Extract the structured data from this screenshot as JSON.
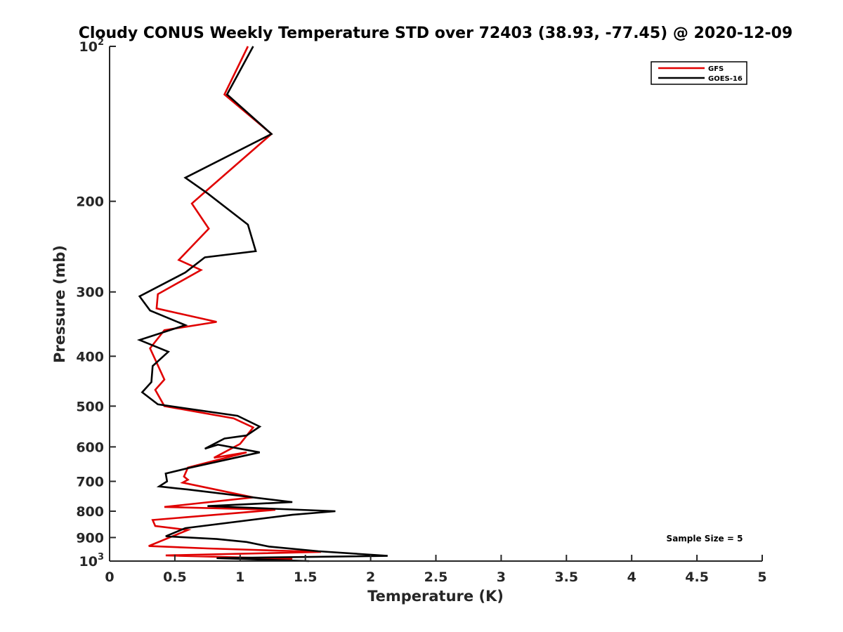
{
  "chart_data": {
    "type": "line",
    "title": "Cloudy CONUS Weekly Temperature STD over 72403 (38.93, -77.45) @ 2020-12-09",
    "xlabel": "Temperature (K)",
    "ylabel": "Pressure (mb)",
    "xlim": [
      0,
      5
    ],
    "ylim": [
      100,
      1000
    ],
    "y_scale": "log",
    "y_reversed": true,
    "x_ticks": [
      0,
      0.5,
      1,
      1.5,
      2,
      2.5,
      3,
      3.5,
      4,
      4.5,
      5
    ],
    "x_tick_labels": [
      "0",
      "0.5",
      "1",
      "1.5",
      "2",
      "2.5",
      "3",
      "3.5",
      "4",
      "4.5",
      "5"
    ],
    "y_ticks": [
      {
        "value": 100,
        "base": "10",
        "exp": "2"
      },
      {
        "value": 200,
        "label": "200"
      },
      {
        "value": 300,
        "label": "300"
      },
      {
        "value": 400,
        "label": "400"
      },
      {
        "value": 500,
        "label": "500"
      },
      {
        "value": 600,
        "label": "600"
      },
      {
        "value": 700,
        "label": "700"
      },
      {
        "value": 800,
        "label": "800"
      },
      {
        "value": 900,
        "label": "900"
      },
      {
        "value": 1000,
        "base": "10",
        "exp": "3"
      }
    ],
    "grid": false,
    "legend_position": "top-right",
    "annotation": "Sample Size = 5",
    "series": [
      {
        "name": "GFS",
        "color": "#e00000",
        "x": [
          1.06,
          0.88,
          1.24,
          0.76,
          0.63,
          0.76,
          0.53,
          0.7,
          0.37,
          0.36,
          0.82,
          0.42,
          0.31,
          0.42,
          0.35,
          0.42,
          0.95,
          1.1,
          1.0,
          0.8,
          1.05,
          0.6,
          0.57,
          0.6,
          0.56,
          1.1,
          0.42,
          1.27,
          0.33,
          0.35,
          0.6,
          0.3,
          0.75,
          1.62,
          0.43,
          1.4
        ],
        "y": [
          100,
          124,
          148,
          189,
          202,
          226,
          260,
          272,
          303,
          323,
          343,
          356,
          386,
          444,
          465,
          500,
          528,
          550,
          592,
          630,
          615,
          658,
          685,
          695,
          704,
          752,
          785,
          795,
          832,
          855,
          870,
          935,
          945,
          960,
          975,
          990
        ]
      },
      {
        "name": "GOES-16",
        "color": "#000000",
        "x": [
          1.1,
          0.9,
          1.24,
          0.58,
          0.75,
          1.06,
          1.12,
          0.73,
          0.58,
          0.23,
          0.31,
          0.58,
          0.23,
          0.45,
          0.33,
          0.32,
          0.25,
          0.37,
          0.98,
          1.15,
          1.05,
          0.88,
          0.73,
          0.83,
          1.15,
          0.6,
          0.43,
          0.44,
          0.38,
          0.6,
          1.4,
          0.75,
          1.73,
          1.4,
          0.58,
          0.43,
          0.82,
          1.05,
          1.22,
          1.6,
          2.13,
          0.82,
          1.53
        ],
        "y": [
          100,
          124,
          148,
          180,
          193,
          222,
          250,
          257,
          275,
          306,
          326,
          348,
          372,
          392,
          418,
          449,
          470,
          496,
          522,
          548,
          570,
          578,
          605,
          594,
          615,
          660,
          676,
          700,
          716,
          726,
          768,
          782,
          800,
          813,
          863,
          895,
          906,
          918,
          937,
          957,
          977,
          987,
          1000
        ]
      }
    ]
  }
}
